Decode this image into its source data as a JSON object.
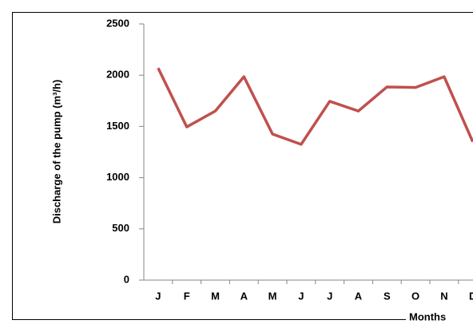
{
  "chart_data": {
    "type": "line",
    "y_label": "Discharge of the pump (m³/h)",
    "x_label": "Months",
    "categories": [
      "J",
      "F",
      "M",
      "A",
      "M",
      "J",
      "J",
      "A",
      "S",
      "O",
      "N",
      "D"
    ],
    "series": [
      {
        "name": "Discharge",
        "color": "#c0504d",
        "values": [
          2070,
          1495,
          1650,
          1985,
          1425,
          1325,
          1745,
          1650,
          1885,
          1880,
          1985,
          1350
        ]
      }
    ],
    "ylim": [
      0,
      2500
    ],
    "yticks": [
      0,
      500,
      1000,
      1500,
      2000,
      2500
    ]
  }
}
